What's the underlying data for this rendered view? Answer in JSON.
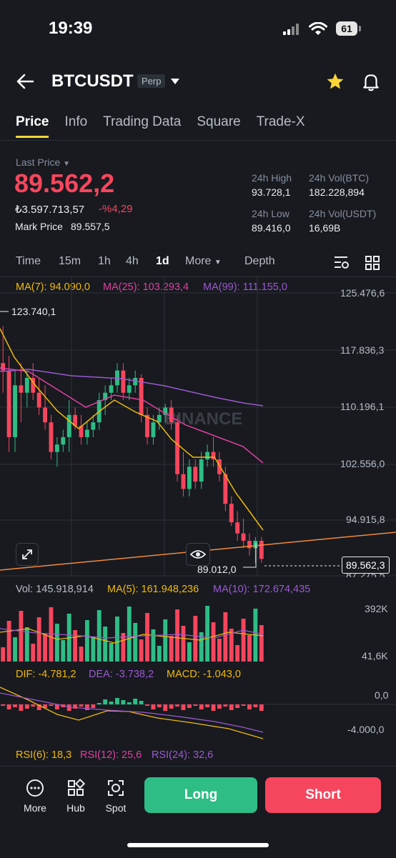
{
  "status": {
    "time": "19:39",
    "battery": "61"
  },
  "header": {
    "symbol": "BTCUSDT",
    "badge": "Perp"
  },
  "tabs": [
    "Price",
    "Info",
    "Trading Data",
    "Square",
    "Trade-X"
  ],
  "price": {
    "last_label": "Last Price",
    "last": "89.562,2",
    "fiat": "₺3.597.713,57",
    "change": "-%4,29",
    "mark_label": "Mark Price",
    "mark": "89.557,5"
  },
  "stats": {
    "high_label": "24h High",
    "high": "93.728,1",
    "vol_btc_label": "24h Vol(BTC)",
    "vol_btc": "182.228,894",
    "low_label": "24h Low",
    "low": "89.416,0",
    "vol_usdt_label": "24h Vol(USDT)",
    "vol_usdt": "16,69B"
  },
  "timeframes": {
    "time": "Time",
    "m15": "15m",
    "h1": "1h",
    "h4": "4h",
    "d1": "1d",
    "more": "More",
    "depth": "Depth"
  },
  "ma_legend": {
    "ma7": "MA(7): 94.090,0",
    "ma25": "MA(25): 103.293,4",
    "ma99": "MA(99): 111.155,0"
  },
  "y_axis": [
    "125.476,6",
    "117.836,3",
    "110.196,1",
    "102.556,0",
    "94.915,8",
    "87.275,5"
  ],
  "chart_labels": {
    "high_marker": "123.740,1",
    "low_marker": "89.012,0",
    "current_price": "89.562,3",
    "watermark": "BINANCE"
  },
  "volume": {
    "vol": "Vol: 145.918,914",
    "ma5": "MA(5): 161.948,236",
    "ma10": "MA(10): 172.674,435",
    "axis_top": "392K",
    "axis_bottom": "41,6K"
  },
  "macd": {
    "dif": "DIF: -4.781,2",
    "dea": "DEA: -3.738,2",
    "macd": "MACD: -1.043,0",
    "axis_top": "0,0",
    "axis_bottom": "-4.000,0"
  },
  "rsi": {
    "rsi6": "RSI(6): 18,3",
    "rsi12": "RSI(12): 25,6",
    "rsi24": "RSI(24): 32,6"
  },
  "bottom_nav": {
    "more": "More",
    "hub": "Hub",
    "spot": "Spot",
    "long": "Long",
    "short": "Short"
  },
  "colors": {
    "up": "#2ebd85",
    "down": "#f6465d",
    "ma7": "#f0b90b",
    "ma25": "#e040a0",
    "ma99": "#9b59d0",
    "accent": "#fcd535"
  },
  "chart_data": {
    "type": "candlestick",
    "ylim": [
      87275.5,
      125476.6
    ],
    "y_ticks": [
      125476.6,
      117836.3,
      110196.1,
      102556.0,
      94915.8,
      87275.5
    ],
    "candles": [
      [
        116000,
        121000,
        112000,
        115000
      ],
      [
        115000,
        117000,
        104000,
        106000
      ],
      [
        106000,
        115000,
        104000,
        113000
      ],
      [
        113000,
        116000,
        108000,
        112000
      ],
      [
        112000,
        115000,
        110000,
        114000
      ],
      [
        114000,
        116000,
        111000,
        112000
      ],
      [
        112000,
        114000,
        109000,
        110000
      ],
      [
        110000,
        113000,
        107000,
        108000
      ],
      [
        108000,
        109000,
        103000,
        104000
      ],
      [
        104000,
        106000,
        102000,
        105000
      ],
      [
        105000,
        107000,
        104000,
        106000
      ],
      [
        106000,
        111000,
        104000,
        109000
      ],
      [
        109000,
        110000,
        107000,
        107500
      ],
      [
        107500,
        109000,
        105000,
        106000
      ],
      [
        106000,
        108000,
        105000,
        107000
      ],
      [
        107000,
        109000,
        106000,
        108000
      ],
      [
        108000,
        112000,
        107000,
        111000
      ],
      [
        111000,
        113000,
        109000,
        112000
      ],
      [
        112000,
        114000,
        111000,
        113000
      ],
      [
        113000,
        116000,
        112000,
        115000
      ],
      [
        115000,
        116000,
        111000,
        112000
      ],
      [
        112000,
        114000,
        111000,
        113000
      ],
      [
        113000,
        115000,
        112000,
        114000
      ],
      [
        114000,
        114500,
        108000,
        109000
      ],
      [
        109000,
        110000,
        105000,
        106000
      ],
      [
        106000,
        109000,
        105000,
        108000
      ],
      [
        108000,
        110000,
        107000,
        109000
      ],
      [
        109000,
        110500,
        108000,
        110000
      ],
      [
        110000,
        111000,
        107000,
        108000
      ],
      [
        108000,
        109000,
        100000,
        101000
      ],
      [
        101000,
        104000,
        98000,
        99000
      ],
      [
        99000,
        103000,
        98000,
        102000
      ],
      [
        102000,
        103000,
        99000,
        100000
      ],
      [
        100000,
        104000,
        99000,
        103000
      ],
      [
        103000,
        105000,
        102000,
        104000
      ],
      [
        104000,
        106000,
        102000,
        103000
      ],
      [
        103000,
        104000,
        100000,
        101000
      ],
      [
        101000,
        102000,
        96000,
        97000
      ],
      [
        97000,
        98000,
        94000,
        94500
      ],
      [
        94500,
        96000,
        92000,
        93000
      ],
      [
        93000,
        95000,
        91000,
        92000
      ],
      [
        92000,
        93000,
        90000,
        91000
      ],
      [
        91000,
        92500,
        89000,
        92000
      ],
      [
        92000,
        92500,
        89012,
        89562
      ]
    ]
  }
}
